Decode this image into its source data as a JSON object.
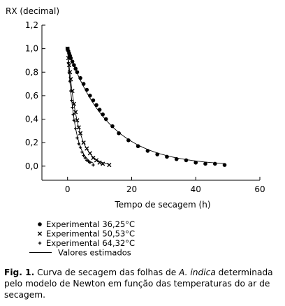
{
  "chart_data": {
    "type": "scatter",
    "ylabel": "RX (decimal)",
    "xlabel": "Tempo de secagem (h)",
    "xlim": [
      -8,
      60
    ],
    "ylim": [
      -0.12,
      1.2
    ],
    "x_ticks": [
      0,
      20,
      40,
      60
    ],
    "x_tick_labels": [
      "0",
      "20",
      "40",
      "60"
    ],
    "y_ticks": [
      0.0,
      0.2,
      0.4,
      0.6,
      0.8,
      1.0,
      1.2
    ],
    "y_tick_labels": [
      "0,0",
      "0,2",
      "0,4",
      "0,6",
      "0,8",
      "1,0",
      "1,2"
    ],
    "grid": false,
    "legend_position": "bottom-left",
    "series": [
      {
        "name": "Experimental 36,25°C",
        "marker": "circle",
        "model_k": 0.078,
        "x": [
          0,
          0.25,
          0.5,
          0.75,
          1,
          1.5,
          2,
          2.5,
          3,
          4,
          5,
          6,
          7,
          8,
          9,
          10,
          11,
          12,
          14,
          16,
          19,
          22,
          25,
          28,
          31,
          34,
          37,
          40,
          43,
          46,
          49
        ],
        "y": [
          1.0,
          0.98,
          0.96,
          0.94,
          0.92,
          0.89,
          0.86,
          0.83,
          0.8,
          0.75,
          0.7,
          0.65,
          0.6,
          0.56,
          0.52,
          0.48,
          0.44,
          0.4,
          0.34,
          0.28,
          0.22,
          0.17,
          0.13,
          0.1,
          0.08,
          0.06,
          0.05,
          0.03,
          0.02,
          0.02,
          0.01
        ]
      },
      {
        "name": "Experimental 50,53°C",
        "marker": "x",
        "model_k": 0.32,
        "x": [
          0,
          0.25,
          0.5,
          0.75,
          1,
          1.5,
          2,
          2.5,
          3,
          3.5,
          4,
          5,
          6,
          7,
          8,
          9,
          10,
          11,
          13
        ],
        "y": [
          1.0,
          0.92,
          0.86,
          0.8,
          0.74,
          0.64,
          0.53,
          0.46,
          0.39,
          0.33,
          0.28,
          0.2,
          0.15,
          0.11,
          0.07,
          0.05,
          0.03,
          0.02,
          0.01
        ]
      },
      {
        "name": "Experimental 64,32°C",
        "marker": "plus",
        "model_k": 0.45,
        "x": [
          0,
          0.25,
          0.5,
          0.75,
          1,
          1.25,
          1.5,
          1.75,
          2,
          2.5,
          3,
          3.5,
          4,
          4.5,
          5,
          5.5,
          6,
          6.5,
          7,
          8
        ],
        "y": [
          1.0,
          0.88,
          0.8,
          0.72,
          0.64,
          0.56,
          0.5,
          0.44,
          0.39,
          0.32,
          0.24,
          0.19,
          0.16,
          0.12,
          0.09,
          0.07,
          0.05,
          0.04,
          0.03,
          0.01
        ]
      }
    ],
    "fit_line_label": "Valores estimados",
    "fit_model": "Newton"
  },
  "caption": {
    "label": "Fig. 1.",
    "text_part1": " Curva de secagem das folhas de ",
    "species": "A. indica",
    "text_part2": " determinada pelo modelo de Newton em função das temperaturas do ar de secagem."
  }
}
